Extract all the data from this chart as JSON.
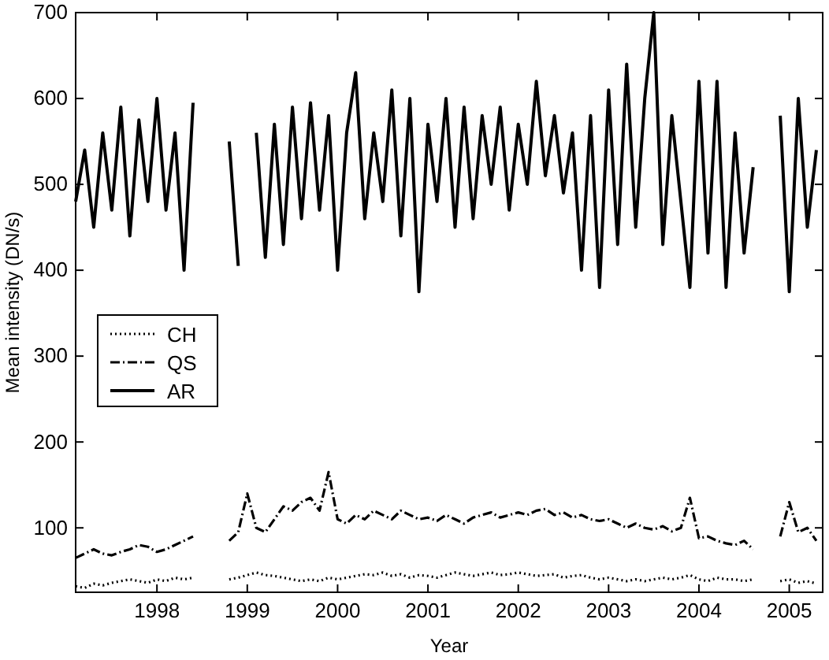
{
  "chart_data": {
    "type": "line",
    "xlabel": "Year",
    "ylabel": "Mean intensity (DN/s)",
    "x": [
      1997.1,
      1997.2,
      1997.3,
      1997.4,
      1997.5,
      1997.6,
      1997.7,
      1997.8,
      1997.9,
      1998.0,
      1998.1,
      1998.2,
      1998.3,
      1998.4,
      1998.5,
      1998.6,
      1998.7,
      1998.8,
      1998.9,
      1999.0,
      1999.1,
      1999.2,
      1999.3,
      1999.4,
      1999.5,
      1999.6,
      1999.7,
      1999.8,
      1999.9,
      2000.0,
      2000.1,
      2000.2,
      2000.3,
      2000.4,
      2000.5,
      2000.6,
      2000.7,
      2000.8,
      2000.9,
      2001.0,
      2001.1,
      2001.2,
      2001.3,
      2001.4,
      2001.5,
      2001.6,
      2001.7,
      2001.8,
      2001.9,
      2002.0,
      2002.1,
      2002.2,
      2002.3,
      2002.4,
      2002.5,
      2002.6,
      2002.7,
      2002.8,
      2002.9,
      2003.0,
      2003.1,
      2003.2,
      2003.3,
      2003.4,
      2003.5,
      2003.6,
      2003.7,
      2003.8,
      2003.9,
      2004.0,
      2004.1,
      2004.2,
      2004.3,
      2004.4,
      2004.5,
      2004.6,
      2004.7,
      2004.8,
      2004.9,
      2005.0,
      2005.1,
      2005.2,
      2005.3
    ],
    "series": [
      {
        "name": "CH",
        "color": "#000000",
        "line_style": "dotted",
        "values": [
          32,
          30,
          35,
          33,
          36,
          38,
          40,
          38,
          36,
          40,
          38,
          42,
          40,
          42,
          null,
          null,
          null,
          40,
          42,
          45,
          48,
          45,
          44,
          42,
          40,
          38,
          40,
          38,
          42,
          40,
          42,
          44,
          46,
          45,
          48,
          44,
          46,
          42,
          45,
          44,
          42,
          45,
          48,
          46,
          44,
          46,
          48,
          45,
          46,
          48,
          46,
          44,
          45,
          46,
          42,
          44,
          45,
          42,
          40,
          42,
          40,
          38,
          40,
          38,
          40,
          42,
          40,
          42,
          45,
          40,
          38,
          42,
          40,
          40,
          38,
          40,
          null,
          null,
          38,
          40,
          36,
          38,
          35
        ]
      },
      {
        "name": "QS",
        "color": "#000000",
        "line_style": "dashdot",
        "values": [
          65,
          70,
          75,
          70,
          68,
          72,
          75,
          80,
          78,
          72,
          75,
          80,
          85,
          90,
          null,
          null,
          null,
          85,
          95,
          140,
          100,
          95,
          110,
          125,
          120,
          130,
          135,
          120,
          165,
          110,
          105,
          115,
          110,
          120,
          115,
          110,
          120,
          115,
          110,
          112,
          108,
          115,
          110,
          105,
          112,
          115,
          118,
          112,
          115,
          118,
          115,
          120,
          122,
          115,
          118,
          112,
          115,
          110,
          108,
          110,
          105,
          100,
          105,
          100,
          98,
          102,
          96,
          100,
          135,
          88,
          90,
          85,
          82,
          80,
          85,
          75,
          null,
          null,
          90,
          130,
          95,
          100,
          85
        ]
      },
      {
        "name": "AR",
        "color": "#000000",
        "line_style": "solid",
        "values": [
          480,
          540,
          450,
          560,
          470,
          590,
          440,
          575,
          480,
          600,
          470,
          560,
          400,
          595,
          null,
          null,
          null,
          550,
          405,
          null,
          560,
          415,
          570,
          430,
          590,
          460,
          595,
          470,
          580,
          400,
          560,
          630,
          460,
          560,
          480,
          610,
          440,
          600,
          375,
          570,
          480,
          600,
          450,
          590,
          460,
          580,
          500,
          590,
          470,
          570,
          500,
          620,
          510,
          580,
          490,
          560,
          400,
          580,
          380,
          610,
          430,
          640,
          450,
          600,
          700,
          430,
          580,
          480,
          380,
          620,
          420,
          620,
          380,
          560,
          420,
          520,
          null,
          null,
          580,
          375,
          600,
          450,
          540
        ]
      }
    ],
    "xlim": [
      1997.1,
      2005.37
    ],
    "xticks": [
      1998,
      1999,
      2000,
      2001,
      2002,
      2003,
      2004,
      2005
    ],
    "ylim": [
      25,
      700
    ],
    "yticks": [
      100,
      200,
      300,
      400,
      500,
      600,
      700
    ],
    "grid": false,
    "legend": "center left"
  }
}
